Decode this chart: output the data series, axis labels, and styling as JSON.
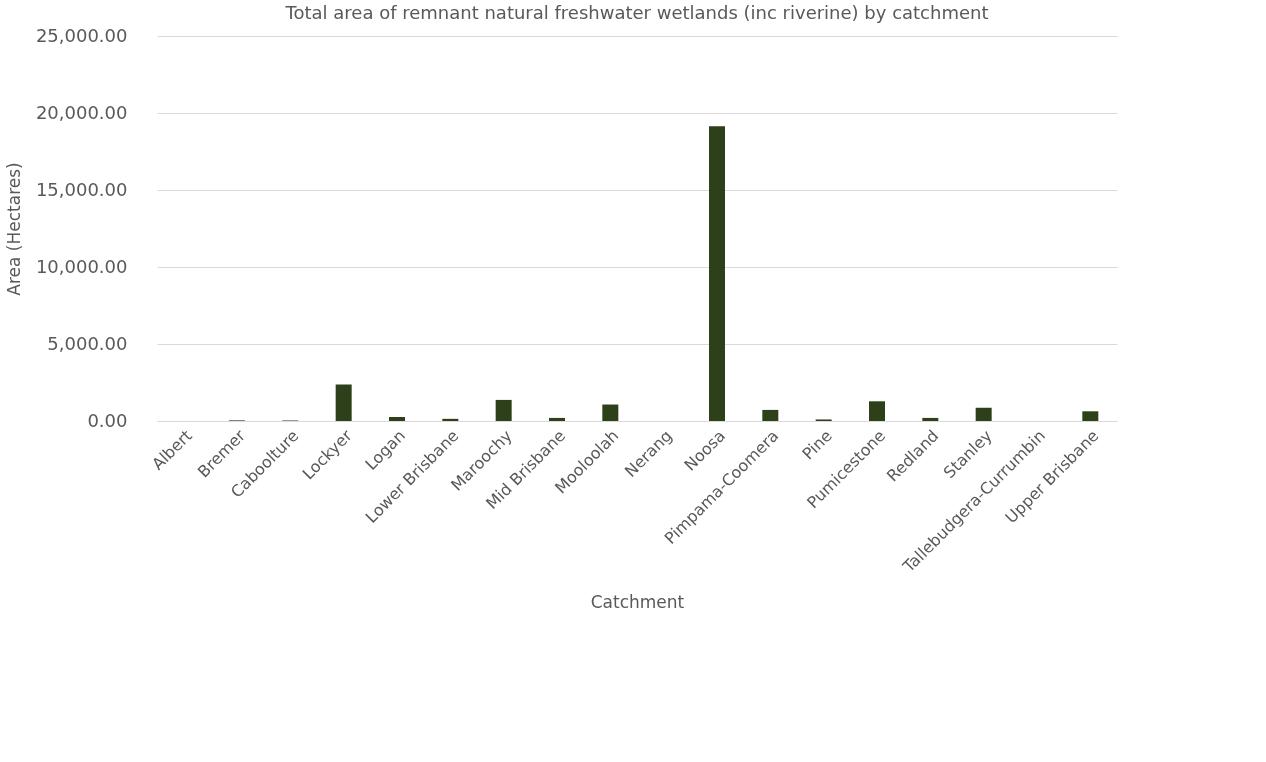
{
  "chart_data": {
    "type": "bar",
    "title": "Total area of remnant natural freshwater wetlands (inc riverine) by catchment",
    "xlabel": "Catchment",
    "ylabel": "Area  (Hectares)",
    "categories": [
      "Albert",
      "Bremer",
      "Caboolture",
      "Lockyer",
      "Logan",
      "Lower Brisbane",
      "Maroochy",
      "Mid Brisbane",
      "Mooloolah",
      "Nerang",
      "Noosa",
      "Pimpama-Coomera",
      "Pine",
      "Pumicestone",
      "Redland",
      "Stanley",
      "Tallebudgera-Currumbin",
      "Upper Brisbane"
    ],
    "values": [
      null,
      40,
      40,
      2370,
      260,
      140,
      1370,
      200,
      1070,
      null,
      19140,
      720,
      100,
      1280,
      200,
      860,
      null,
      630
    ],
    "color": "#2d401a",
    "ylim": [
      0,
      25000
    ],
    "yticks": [
      {
        "value": 0,
        "label": "0.00"
      },
      {
        "value": 5000,
        "label": "5,000.00"
      },
      {
        "value": 10000,
        "label": "10,000.00"
      },
      {
        "value": 15000,
        "label": "15,000.00"
      },
      {
        "value": 20000,
        "label": "20,000.00"
      },
      {
        "value": 25000,
        "label": "25,000.00"
      }
    ],
    "grid": "y"
  }
}
